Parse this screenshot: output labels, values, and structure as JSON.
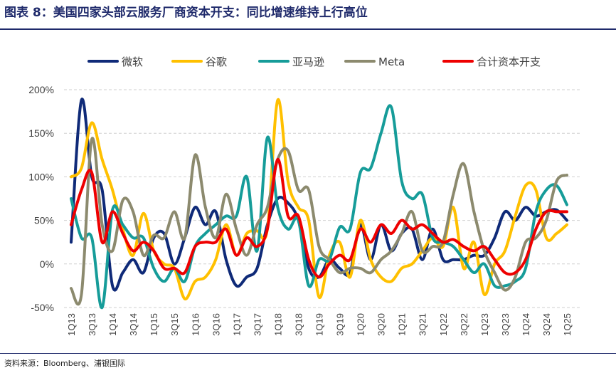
{
  "figure": {
    "title": "图表 8：美国四家头部云服务厂商资本开支：同比增速维持上行高位",
    "source": "资料来源：Bloomberg、浦银国际"
  },
  "chart_data": {
    "type": "line",
    "title": "",
    "xlabel": "",
    "ylabel": "",
    "ylim": [
      -50,
      200
    ],
    "yticks": [
      "-50%",
      "0%",
      "50%",
      "100%",
      "150%",
      "200%"
    ],
    "grid": "horizontal-dashed",
    "legend_position": "top",
    "x": [
      "1Q13",
      "2Q13",
      "3Q13",
      "4Q13",
      "1Q14",
      "2Q14",
      "3Q14",
      "4Q14",
      "1Q15",
      "2Q15",
      "3Q15",
      "4Q15",
      "1Q16",
      "2Q16",
      "3Q16",
      "4Q16",
      "1Q17",
      "2Q17",
      "3Q17",
      "4Q17",
      "1Q18",
      "2Q18",
      "3Q18",
      "4Q18",
      "1Q19",
      "2Q19",
      "3Q19",
      "4Q19",
      "1Q20",
      "2Q20",
      "3Q20",
      "4Q20",
      "1Q21",
      "2Q21",
      "3Q21",
      "4Q21",
      "1Q22",
      "2Q22",
      "3Q22",
      "4Q22",
      "1Q23",
      "2Q23",
      "3Q23",
      "4Q23",
      "1Q24",
      "2Q24",
      "3Q24",
      "4Q24",
      "1Q25"
    ],
    "xtick_labels": [
      "1Q13",
      "3Q13",
      "1Q14",
      "3Q14",
      "1Q15",
      "3Q15",
      "1Q16",
      "3Q16",
      "1Q17",
      "3Q17",
      "1Q18",
      "3Q18",
      "1Q19",
      "3Q19",
      "1Q20",
      "3Q20",
      "1Q21",
      "3Q21",
      "1Q22",
      "3Q22",
      "1Q23",
      "3Q23",
      "1Q24",
      "3Q24",
      "1Q25"
    ],
    "series": [
      {
        "name": "微软",
        "color": "#0f2a78",
        "values": [
          25,
          188,
          100,
          85,
          -25,
          -10,
          5,
          -10,
          30,
          35,
          0,
          30,
          65,
          45,
          60,
          5,
          -25,
          -15,
          -5,
          45,
          75,
          70,
          50,
          -5,
          -15,
          5,
          -5,
          -10,
          45,
          5,
          45,
          15,
          35,
          40,
          5,
          40,
          5,
          5,
          5,
          10,
          10,
          30,
          60,
          50,
          65,
          55,
          60,
          62,
          50
        ]
      },
      {
        "name": "谷歌",
        "color": "#ffc000",
        "values": [
          100,
          110,
          162,
          120,
          85,
          40,
          10,
          58,
          15,
          0,
          -5,
          -40,
          -20,
          -15,
          5,
          45,
          10,
          35,
          38,
          40,
          188,
          95,
          65,
          50,
          -38,
          10,
          25,
          -15,
          50,
          5,
          -15,
          -20,
          -5,
          0,
          15,
          30,
          20,
          65,
          -5,
          25,
          -35,
          0,
          15,
          55,
          90,
          85,
          30,
          35,
          45
        ]
      },
      {
        "name": "亚马逊",
        "color": "#169c99",
        "values": [
          75,
          30,
          30,
          -50,
          62,
          45,
          30,
          30,
          -5,
          -20,
          -5,
          -20,
          20,
          35,
          45,
          55,
          55,
          100,
          15,
          145,
          65,
          40,
          50,
          -25,
          5,
          5,
          42,
          40,
          105,
          110,
          150,
          180,
          95,
          75,
          80,
          30,
          25,
          20,
          5,
          -10,
          0,
          -25,
          -25,
          -20,
          -5,
          60,
          85,
          90,
          68
        ]
      },
      {
        "name": "Meta",
        "color": "#8c8a6e",
        "values": [
          -28,
          -35,
          143,
          45,
          15,
          73,
          60,
          10,
          33,
          30,
          60,
          30,
          125,
          65,
          30,
          80,
          40,
          10,
          45,
          65,
          120,
          130,
          85,
          85,
          20,
          5,
          -10,
          -5,
          -5,
          -10,
          5,
          15,
          35,
          60,
          15,
          20,
          25,
          80,
          115,
          60,
          15,
          -10,
          -30,
          -15,
          25,
          30,
          50,
          95,
          102
        ]
      },
      {
        "name": "合计资本开支",
        "color": "#ee0000",
        "values": [
          45,
          85,
          105,
          25,
          60,
          35,
          15,
          25,
          15,
          -5,
          -5,
          -10,
          20,
          25,
          25,
          40,
          10,
          30,
          20,
          40,
          120,
          55,
          55,
          5,
          -15,
          0,
          10,
          5,
          40,
          25,
          45,
          35,
          50,
          40,
          45,
          35,
          25,
          28,
          20,
          15,
          20,
          5,
          -10,
          -10,
          5,
          40,
          60,
          60,
          60
        ]
      }
    ]
  }
}
